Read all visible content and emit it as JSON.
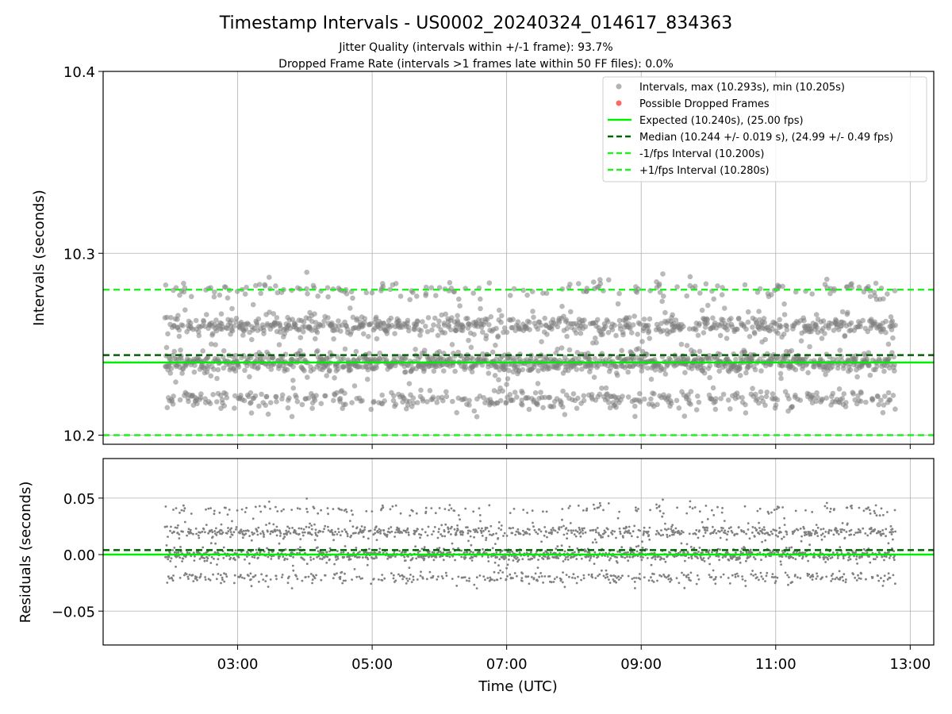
{
  "figure": {
    "title": "Timestamp Intervals - US0002_20240324_014617_834363",
    "subtitle_1": "Jitter Quality (intervals within +/-1 frame): 93.7%",
    "subtitle_2": "Dropped Frame Rate (intervals >1 frames late within 50 FF files): 0.0%"
  },
  "colors": {
    "points": "#808080",
    "dropped": "#ff0000",
    "expected": "#00ee00",
    "median": "#006400",
    "bounds": "#22ee22"
  },
  "chart_data": [
    {
      "type": "scatter",
      "ylabel": "Intervals (seconds)",
      "ylim": [
        10.195,
        10.4
      ],
      "yticks": [
        10.2,
        10.3,
        10.4
      ],
      "ytick_labels": [
        "10.2",
        "10.3",
        "10.4"
      ],
      "grid": true,
      "legend_position": "top-right",
      "legend": [
        "Intervals, max (10.293s), min (10.205s)",
        "Possible Dropped Frames",
        "Expected (10.240s), (25.00 fps)",
        "Median (10.244 +/- 0.019 s), (24.99 +/- 0.49 fps)",
        "-1/fps Interval (10.200s)",
        "+1/fps Interval (10.280s)"
      ],
      "reference_lines": {
        "expected": 10.24,
        "median": 10.244,
        "minus_one_frame": 10.2,
        "plus_one_frame": 10.28
      },
      "series": [
        {
          "name": "Intervals, max (10.293s), min (10.205s)",
          "cluster_centers": [
            10.22,
            10.24,
            10.26,
            10.28
          ],
          "cluster_weights": [
            0.18,
            0.42,
            0.32,
            0.08
          ],
          "max": 10.293,
          "min": 10.205,
          "x_start_hours": 1.92,
          "x_end_hours": 12.78
        }
      ]
    },
    {
      "type": "scatter",
      "xlabel": "Time (UTC)",
      "ylabel": "Residuals (seconds)",
      "ylim": [
        -0.08,
        0.085
      ],
      "yticks": [
        -0.05,
        0.0,
        0.05
      ],
      "ytick_labels": [
        "−0.05",
        "0.00",
        "0.05"
      ],
      "xlim_hours": [
        1.0,
        13.35
      ],
      "xticks_hours": [
        3,
        5,
        7,
        9,
        11,
        13
      ],
      "xtick_labels": [
        "03:00",
        "05:00",
        "07:00",
        "09:00",
        "11:00",
        "13:00"
      ],
      "grid": true,
      "reference_lines": {
        "zero": 0.0,
        "median": 0.004
      },
      "series": [
        {
          "cluster_centers": [
            -0.02,
            0.0,
            0.02,
            0.04
          ],
          "cluster_weights": [
            0.18,
            0.42,
            0.32,
            0.08
          ]
        }
      ]
    }
  ]
}
